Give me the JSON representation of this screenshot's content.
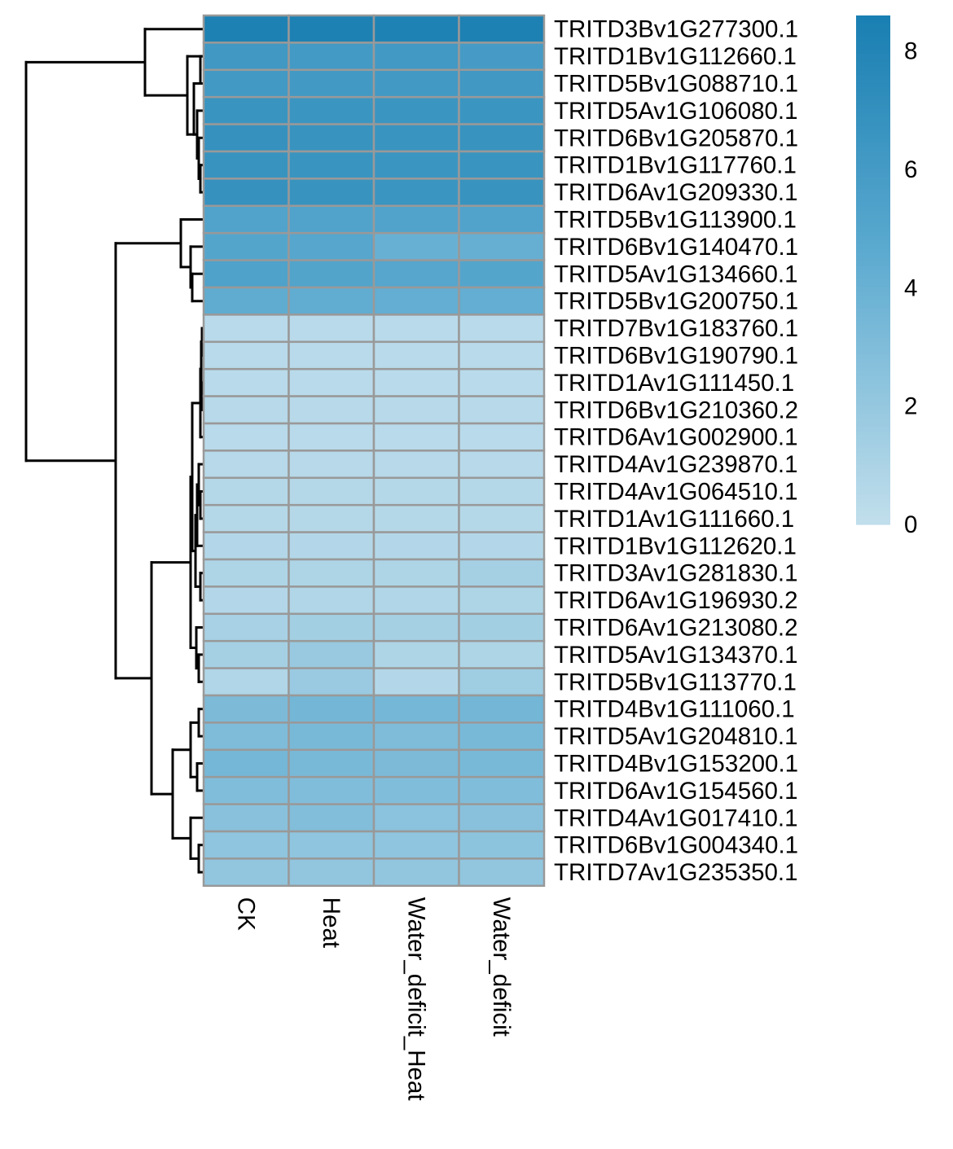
{
  "chart_data": {
    "type": "heatmap",
    "columns": [
      "CK",
      "Heat",
      "Water_deficit_Heat",
      "Water_deficit"
    ],
    "rows": [
      "TRITD3Bv1G277300.1",
      "TRITD1Bv1G112660.1",
      "TRITD5Bv1G088710.1",
      "TRITD5Av1G106080.1",
      "TRITD6Bv1G205870.1",
      "TRITD1Bv1G117760.1",
      "TRITD6Av1G209330.1",
      "TRITD5Bv1G113900.1",
      "TRITD6Bv1G140470.1",
      "TRITD5Av1G134660.1",
      "TRITD5Bv1G200750.1",
      "TRITD7Bv1G183760.1",
      "TRITD6Bv1G190790.1",
      "TRITD1Av1G111450.1",
      "TRITD6Bv1G210360.2",
      "TRITD6Av1G002900.1",
      "TRITD4Av1G239870.1",
      "TRITD4Av1G064510.1",
      "TRITD1Av1G111660.1",
      "TRITD1Bv1G112620.1",
      "TRITD3Av1G281830.1",
      "TRITD6Av1G196930.2",
      "TRITD6Av1G213080.2",
      "TRITD5Av1G134370.1",
      "TRITD5Bv1G113770.1",
      "TRITD4Bv1G111060.1",
      "TRITD5Av1G204810.1",
      "TRITD4Bv1G153200.1",
      "TRITD6Av1G154560.1",
      "TRITD4Av1G017410.1",
      "TRITD6Bv1G004340.1",
      "TRITD7Av1G235350.1"
    ],
    "values": [
      [
        8.4,
        8.4,
        8.3,
        8.4
      ],
      [
        6.3,
        6.1,
        6.2,
        6.0
      ],
      [
        6.2,
        6.2,
        6.2,
        6.3
      ],
      [
        6.7,
        6.6,
        6.6,
        6.6
      ],
      [
        6.9,
        6.8,
        6.7,
        6.8
      ],
      [
        6.8,
        6.7,
        6.6,
        6.7
      ],
      [
        6.9,
        6.8,
        6.6,
        6.8
      ],
      [
        5.3,
        5.3,
        5.3,
        5.3
      ],
      [
        5.1,
        5.0,
        4.1,
        4.2
      ],
      [
        5.4,
        5.2,
        5.0,
        5.1
      ],
      [
        4.5,
        4.4,
        4.3,
        4.3
      ],
      [
        0.4,
        0.4,
        0.4,
        0.4
      ],
      [
        0.4,
        0.4,
        0.4,
        0.4
      ],
      [
        0.4,
        0.4,
        0.4,
        0.4
      ],
      [
        0.5,
        0.5,
        0.5,
        0.5
      ],
      [
        0.4,
        0.4,
        0.4,
        0.4
      ],
      [
        0.5,
        0.5,
        0.5,
        0.5
      ],
      [
        0.6,
        0.6,
        0.6,
        0.6
      ],
      [
        0.6,
        0.6,
        0.6,
        0.6
      ],
      [
        0.7,
        0.7,
        0.7,
        0.7
      ],
      [
        0.9,
        0.9,
        0.9,
        1.3
      ],
      [
        0.7,
        0.8,
        0.8,
        0.9
      ],
      [
        1.2,
        1.4,
        1.3,
        1.4
      ],
      [
        1.3,
        1.9,
        0.9,
        0.9
      ],
      [
        0.8,
        1.8,
        0.7,
        1.6
      ],
      [
        3.2,
        3.6,
        3.5,
        3.6
      ],
      [
        3.1,
        3.3,
        3.1,
        3.3
      ],
      [
        3.5,
        3.3,
        3.2,
        3.3
      ],
      [
        3.0,
        3.0,
        3.0,
        3.0
      ],
      [
        2.6,
        2.9,
        2.5,
        2.6
      ],
      [
        2.3,
        2.3,
        2.3,
        2.4
      ],
      [
        2.2,
        2.2,
        2.2,
        2.2
      ]
    ],
    "color_scale": {
      "min": 0,
      "max": 8.6,
      "low_color": "#c2dfec",
      "mid_color": "#5aa9cf",
      "high_color": "#1a7fb2",
      "ticks": [
        0,
        2,
        4,
        6,
        8
      ]
    },
    "cell_border_color": "#999999",
    "dendrogram_color": "#000000",
    "dendrogram": [
      [
        0,
        34,
        10,
        80,
        122
      ],
      [
        1,
        33,
        20,
        82,
        100
      ],
      [
        2,
        42,
        6,
        15,
        28
      ],
      [
        3,
        53,
        2,
        19,
        26
      ],
      [
        4,
        18,
        2,
        11,
        13
      ],
      [
        5,
        14,
        2,
        8,
        9
      ],
      [
        6,
        18,
        2,
        0,
        1
      ],
      [
        7,
        20,
        2,
        4,
        5
      ],
      [
        8,
        21,
        2,
        12,
        15
      ],
      [
        9,
        22,
        2,
        3,
        6
      ],
      [
        10,
        23,
        2,
        7,
        10
      ],
      [
        11,
        22,
        2,
        2,
        9
      ],
      [
        12,
        27,
        2,
        14,
        17
      ],
      [
        13,
        21,
        2,
        11,
        16
      ],
      [
        14,
        18,
        2,
        18,
        19
      ],
      [
        15,
        15,
        2,
        23,
        24
      ],
      [
        16,
        20,
        2,
        22,
        25
      ],
      [
        17,
        26,
        2,
        21,
        26
      ],
      [
        18,
        30,
        2,
        27,
        28
      ],
      [
        19,
        22,
        2,
        20,
        29
      ],
      [
        20,
        29,
        2,
        30,
        31
      ],
      [
        21,
        44,
        2,
        32,
        34
      ],
      [
        22,
        33,
        2,
        35,
        36
      ],
      [
        23,
        43,
        2,
        37,
        38
      ],
      [
        24,
        49,
        2,
        39,
        40
      ],
      [
        25,
        28,
        2,
        41,
        42
      ],
      [
        26,
        34,
        2,
        43,
        44
      ],
      [
        27,
        35,
        2,
        45,
        46
      ],
      [
        28,
        36,
        2,
        47,
        48
      ],
      [
        29,
        37,
        2,
        49,
        50
      ],
      [
        30,
        50,
        2,
        51,
        52
      ],
      [
        31,
        48,
        2,
        53,
        54
      ],
      [
        32,
        55,
        2,
        55,
        56
      ],
      [
        33,
        54,
        2,
        57,
        58
      ],
      [
        34,
        60,
        2,
        59,
        60
      ],
      [
        35,
        37,
        2,
        61,
        62
      ]
    ]
  }
}
